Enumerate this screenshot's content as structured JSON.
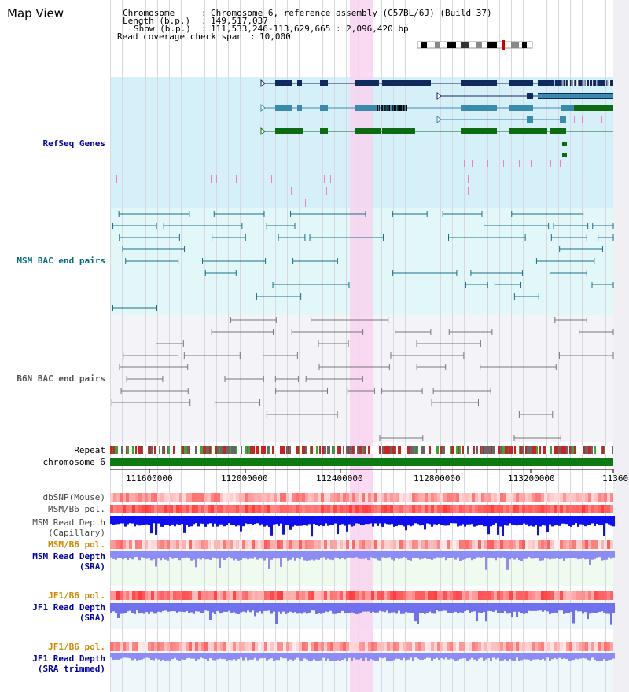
{
  "header": {
    "title": "Map View",
    "chromosome_key": "Chromosome",
    "chromosome_value": "Chromosome 6, reference assembly (C57BL/6J) (Build 37)",
    "length_key": "Length (b.p.)",
    "length_value": "149,517,037",
    "show_key": "Show (b.p.)",
    "show_value": "111,533,246-113,629,665 : 2,096,420 bp",
    "span_key": "Read coverage check span",
    "span_value": "10,000"
  },
  "tracks": {
    "refseq": "RefSeq Genes",
    "msm_bac": "MSM BAC end pairs",
    "b6n_bac": "B6N BAC end pairs",
    "repeat": "Repeat",
    "chromosome": "chromosome 6"
  },
  "axis": {
    "ticks": [
      "111600000",
      "112000000",
      "112400000",
      "112800000",
      "113200000",
      "11360"
    ]
  },
  "lower_tracks": [
    {
      "name": "dbsnp",
      "line1": "dbSNP(Mouse)",
      "line2": ""
    },
    {
      "name": "msm-b6-pol",
      "line1": "MSM/B6 pol.",
      "line2": ""
    },
    {
      "name": "msm-read-depth-capillary",
      "line1": "MSM Read Depth",
      "line2": "(Capillary)"
    },
    {
      "name": "msm-b6-pol-orange",
      "line1": "MSM/B6 pol.",
      "line2": ""
    },
    {
      "name": "msm-read-depth-sra",
      "line1": "MSM Read Depth",
      "line2": "(SRA)"
    },
    {
      "name": "jf1-b6-pol",
      "line1": "JF1/B6 pol.",
      "line2": ""
    },
    {
      "name": "jf1-read-depth-sra",
      "line1": "JF1 Read Depth",
      "line2": "(SRA)"
    },
    {
      "name": "jf1-b6-pol-2",
      "line1": "JF1/B6 pol.",
      "line2": ""
    },
    {
      "name": "jf1-read-depth-trimmed",
      "line1": "JF1 Read Depth",
      "line2": "(SRA trimmed)"
    }
  ],
  "colors": {
    "refseq_bg": "#d6f0fa",
    "msm_bg": "#e2f8f8",
    "b6n_bg": "#f4f4f8",
    "highlight": "#f8d4f0",
    "gene_dark": "#0f2a5e",
    "gene_mid": "#3a8ab0",
    "gene_green": "#0d6b12",
    "msm_line": "#1a6e86",
    "b6n_line": "#777777",
    "label_blue": "#0000aa",
    "label_teal": "#006c80",
    "label_gray": "#444444",
    "label_orange": "#d08800"
  }
}
